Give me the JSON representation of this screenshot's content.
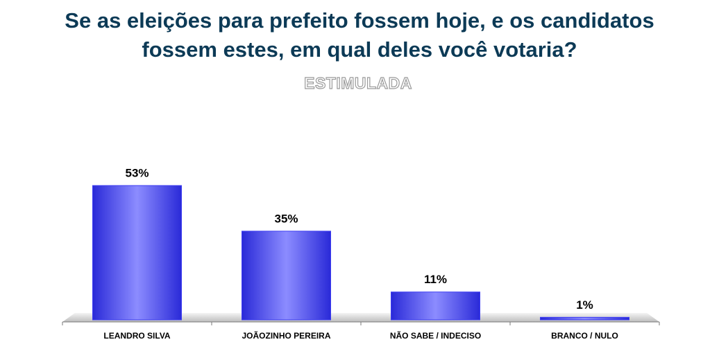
{
  "chart_data": {
    "type": "bar",
    "title": [
      "Se as eleições para prefeito fossem hoje,  e os candidatos",
      "fossem estes, em qual deles você votaria?"
    ],
    "subtitle": "ESTIMULADA",
    "categories": [
      "LEANDRO SILVA",
      "JOÃOZINHO PEREIRA",
      "NÃO SABE / INDECISO",
      "BRANCO / NULO"
    ],
    "values": [
      53,
      35,
      11,
      1
    ],
    "value_labels": [
      "53%",
      "35%",
      "11%",
      "1%"
    ],
    "color": "#3c3cf2"
  }
}
